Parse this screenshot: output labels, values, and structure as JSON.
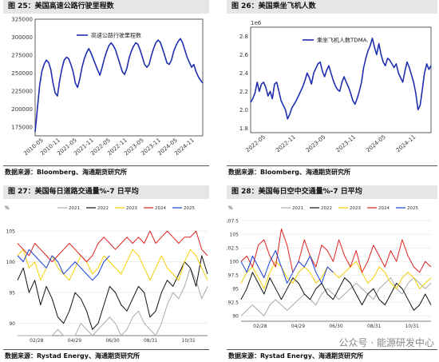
{
  "panels": [
    {
      "title": "图 25：美国高速公路行驶里程数",
      "source": "数据来源：Bloomberg、海通期货研究所",
      "chart_data": {
        "type": "line",
        "title": "",
        "xlabel": "",
        "ylabel": "",
        "ylim": [
          162500,
          325000
        ],
        "yticks": [
          175000,
          200000,
          225000,
          250000,
          275000,
          300000,
          325000
        ],
        "yticklabels": [
          "175000",
          "200000",
          "225000",
          "250000",
          "275000",
          "300000",
          "325000"
        ],
        "xticklabels": [
          "2010-05",
          "2010-11",
          "2021-05",
          "2021-11",
          "2022-05",
          "2022-11",
          "2023-05",
          "2023-11",
          "2024-05",
          "2024-11"
        ],
        "legend": "top-center",
        "series": [
          {
            "name": "高速公路行驶里程数",
            "color": "#1f2fb0",
            "values": [
              168000,
              200000,
              232000,
              252000,
              262000,
              268000,
              265000,
              255000,
              236000,
              222000,
              218000,
              240000,
              256000,
              268000,
              272000,
              270000,
              262000,
              252000,
              236000,
              230000,
              242000,
              258000,
              270000,
              278000,
              284000,
              278000,
              270000,
              262000,
              254000,
              247000,
              258000,
              270000,
              280000,
              288000,
              292000,
              288000,
              282000,
              272000,
              262000,
              252000,
              248000,
              256000,
              270000,
              280000,
              287000,
              292000,
              290000,
              282000,
              272000,
              262000,
              258000,
              262000,
              274000,
              284000,
              292000,
              296000,
              293000,
              284000,
              274000,
              264000,
              262000,
              268000,
              280000,
              288000,
              294000,
              298000,
              292000,
              282000,
              272000,
              265000,
              258000,
              262000,
              252000,
              245000,
              240000,
              236000
            ]
          }
        ]
      }
    },
    {
      "title": "图 26：美国乘坐飞机人数",
      "source": "数据来源：Bloomberg、海通期货研究所",
      "chart_data": {
        "type": "line",
        "title": "",
        "xlabel": "",
        "ylabel": "",
        "ylim": [
          1.75,
          2.9
        ],
        "yticks": [
          1.8,
          2.0,
          2.2,
          2.4,
          2.6,
          2.8
        ],
        "yticklabels": [
          "1.8",
          "2.0",
          "2.2",
          "2.4",
          "2.6",
          "2.8"
        ],
        "axis_multiplier": "1e6",
        "xticklabels": [
          "2022-05",
          "2022-11",
          "2023-05",
          "2023-11",
          "2024-05",
          "2024-11"
        ],
        "legend": "top-center",
        "series": [
          {
            "name": "乘坐飞机人数TDMA.",
            "color": "#1f2fb0",
            "values": [
              2.08,
              2.12,
              2.18,
              2.3,
              2.2,
              2.28,
              2.3,
              2.24,
              2.15,
              2.2,
              2.12,
              2.28,
              2.3,
              2.2,
              2.1,
              2.05,
              2.0,
              1.9,
              1.95,
              2.02,
              2.06,
              2.1,
              2.15,
              2.2,
              2.25,
              2.32,
              2.4,
              2.35,
              2.28,
              2.4,
              2.45,
              2.5,
              2.52,
              2.42,
              2.36,
              2.43,
              2.48,
              2.4,
              2.32,
              2.26,
              2.22,
              2.2,
              2.3,
              2.36,
              2.3,
              2.25,
              2.18,
              2.1,
              2.06,
              2.12,
              2.2,
              2.3,
              2.46,
              2.56,
              2.64,
              2.7,
              2.78,
              2.68,
              2.6,
              2.72,
              2.6,
              2.52,
              2.48,
              2.56,
              2.54,
              2.5,
              2.46,
              2.5,
              2.4,
              2.35,
              2.3,
              2.42,
              2.52,
              2.46,
              2.38,
              2.3,
              2.18,
              2.0,
              2.05,
              2.22,
              2.4,
              2.5,
              2.44,
              2.48
            ]
          }
        ]
      }
    },
    {
      "title": "图 27：美国每日道路交通量%-7 日平均",
      "source": "数据来源：Rystad Energy、海通期货研究所",
      "chart_data": {
        "type": "line",
        "title": "",
        "ylabel": "%",
        "ylim": [
          88,
          108
        ],
        "yticks": [
          90,
          95,
          100,
          105
        ],
        "yticklabels": [
          "90",
          "95",
          "100",
          "105"
        ],
        "xticklabels": [
          "02/28",
          "04/29",
          "06/30",
          "08/31",
          "10/31"
        ],
        "legend": "top",
        "series": [
          {
            "name": "2021",
            "color": "#aaaaaa",
            "values": [
              85,
              86,
              86,
              88,
              87,
              86,
              88,
              89,
              88,
              87,
              88,
              90,
              89,
              88,
              89,
              90,
              91,
              90,
              88,
              89,
              91,
              92,
              90,
              89,
              88,
              90,
              93,
              95,
              94,
              96,
              99,
              97,
              94,
              96
            ]
          },
          {
            "name": "2022",
            "color": "#111111",
            "values": [
              97,
              99,
              95,
              97,
              93,
              96,
              94,
              91,
              90,
              92,
              95,
              94,
              92,
              89,
              90,
              93,
              96,
              95,
              93,
              92,
              94,
              96,
              95,
              91,
              92,
              95,
              97,
              96,
              98,
              100,
              99,
              96,
              101,
              98
            ]
          },
          {
            "name": "2023",
            "color": "#f2d000",
            "values": [
              101,
              102,
              99,
              100,
              97,
              99,
              101,
              99,
              98,
              97,
              99,
              101,
              100,
              98,
              99,
              101,
              100,
              99,
              98,
              100,
              102,
              101,
              99,
              97,
              99,
              101,
              99,
              98,
              97,
              100,
              102,
              101,
              99,
              97
            ]
          },
          {
            "name": "2024",
            "color": "#e02020",
            "values": [
              103,
              102,
              101,
              103,
              102,
              101,
              100,
              101,
              102,
              103,
              102,
              101,
              100,
              101,
              103,
              104,
              103,
              102,
              103,
              104,
              103,
              104,
              103,
              105,
              103,
              104,
              105,
              104,
              103,
              104,
              104,
              105,
              102,
              101
            ]
          },
          {
            "name": "2025",
            "color": "#1a3fd8",
            "values": [
              101,
              100,
              102,
              101,
              100,
              99,
              101,
              100,
              98,
              99,
              100,
              99,
              98,
              97,
              98,
              100,
              101
            ]
          }
        ]
      }
    },
    {
      "title": "图 28：美国每日空中交通量%-7 日平均",
      "source": "数据来源：Rystad Energy、海通期货研究所",
      "chart_data": {
        "type": "line",
        "title": "",
        "ylabel": "%",
        "ylim": [
          89,
          109
        ],
        "yticks": [
          90,
          92.5,
          95,
          97.5,
          100,
          102.5,
          105,
          107.5
        ],
        "yticklabels": [
          "90",
          "92.5",
          "95",
          "97.5",
          "100",
          "102.5",
          "105",
          "107.5"
        ],
        "xticklabels": [
          "02/28",
          "04/29",
          "06/30",
          "08/31",
          "10/31"
        ],
        "legend": "top",
        "series": [
          {
            "name": "2021",
            "color": "#aaaaaa",
            "values": [
              90,
              91,
              92,
              91,
              90,
              92,
              93,
              92,
              91,
              92,
              93,
              94,
              93,
              92,
              94,
              95,
              94,
              93,
              94,
              95,
              96,
              95,
              94,
              93,
              95,
              96,
              97,
              95,
              94,
              96,
              97,
              96,
              95,
              96
            ]
          },
          {
            "name": "2022",
            "color": "#111111",
            "values": [
              93,
              95,
              98,
              96,
              94,
              97,
              95,
              93,
              95,
              97,
              96,
              94,
              93,
              95,
              96,
              94,
              93,
              95,
              97,
              96,
              94,
              92,
              94,
              95,
              93,
              92,
              94,
              96,
              95,
              93,
              91,
              92,
              94,
              92
            ]
          },
          {
            "name": "2023",
            "color": "#f2d000",
            "values": [
              96,
              98,
              99,
              97,
              95,
              98,
              100,
              99,
              97,
              96,
              98,
              99,
              98,
              96,
              97,
              99,
              98,
              97,
              98,
              99,
              100,
              98,
              96,
              97,
              99,
              98,
              96,
              95,
              97,
              98,
              97,
              95,
              96,
              97
            ]
          },
          {
            "name": "2024",
            "color": "#e02020",
            "values": [
              100,
              101,
              99,
              103,
              104,
              101,
              99,
              106,
              103,
              98,
              100,
              104,
              101,
              99,
              103,
              102,
              100,
              104,
              101,
              99,
              102,
              98,
              100,
              103,
              101,
              99,
              102,
              100,
              104,
              101,
              99,
              98,
              100,
              99
            ]
          },
          {
            "name": "2025",
            "color": "#1a3fd8",
            "values": [
              100,
              98,
              101,
              99,
              97,
              100,
              102,
              99,
              96,
              98,
              100,
              99,
              101,
              98,
              96,
              99,
              98
            ]
          }
        ]
      }
    }
  ],
  "watermark": "公众号 · 能源研发中心"
}
